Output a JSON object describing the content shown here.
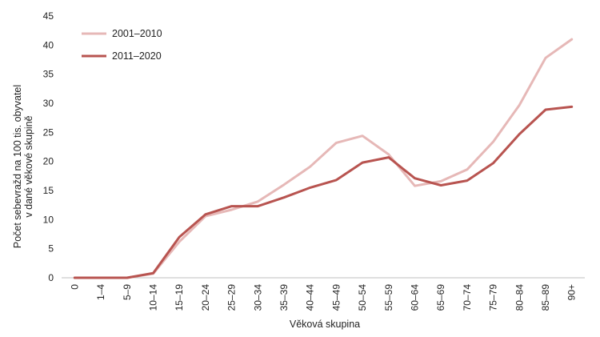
{
  "chart_data": {
    "type": "line",
    "xlabel": "Věková skupina",
    "ylabel_lines": [
      "Počet sebevražd na 100 tis. obyvatel",
      "v dané věkové skupině"
    ],
    "ylim": [
      0,
      45
    ],
    "yticks": [
      0,
      5,
      10,
      15,
      20,
      25,
      30,
      35,
      40,
      45
    ],
    "grid": false,
    "legend_position": "top-left",
    "categories": [
      "0",
      "1–4",
      "5–9",
      "10–14",
      "15–19",
      "20–24",
      "25–29",
      "30–34",
      "35–39",
      "40–44",
      "45–49",
      "50–54",
      "55–59",
      "60–64",
      "65–69",
      "70–74",
      "75–79",
      "80–84",
      "85–89",
      "90+"
    ],
    "series": [
      {
        "name": "2001–2010",
        "color": "#e6b8b7",
        "values": [
          0,
          0,
          0,
          0.7,
          6.2,
          10.6,
          11.7,
          13.1,
          16.0,
          19.1,
          23.2,
          24.4,
          21.2,
          15.8,
          16.6,
          18.6,
          23.4,
          29.7,
          37.8,
          41.0
        ]
      },
      {
        "name": "2011–2020",
        "color": "#b85450",
        "values": [
          0,
          0,
          0,
          0.8,
          7.0,
          10.9,
          12.3,
          12.3,
          13.8,
          15.5,
          16.8,
          19.8,
          20.7,
          17.1,
          15.9,
          16.7,
          19.7,
          24.7,
          28.9,
          29.4
        ]
      }
    ]
  }
}
